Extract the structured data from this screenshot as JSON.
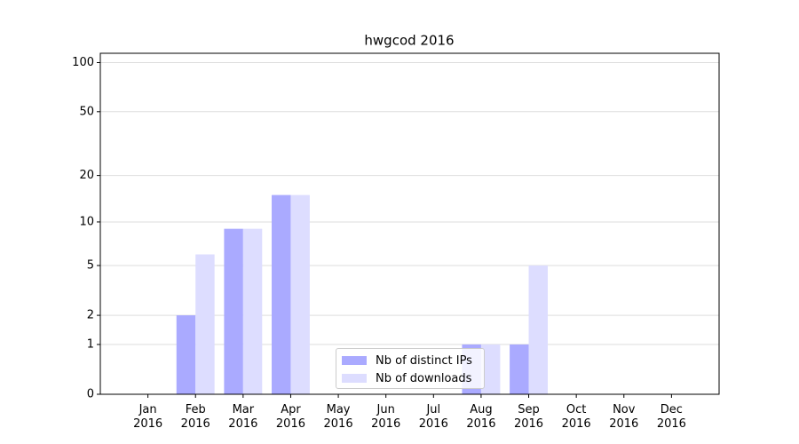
{
  "chart_data": {
    "type": "bar",
    "title": "hwgcod 2016",
    "scale": "log1p",
    "categories": [
      "Jan\n2016",
      "Feb\n2016",
      "Mar\n2016",
      "Apr\n2016",
      "May\n2016",
      "Jun\n2016",
      "Jul\n2016",
      "Aug\n2016",
      "Sep\n2016",
      "Oct\n2016",
      "Nov\n2016",
      "Dec\n2016"
    ],
    "series": [
      {
        "name": "Nb of distinct IPs",
        "color": "#aaaaff",
        "values": [
          0,
          2,
          9,
          15,
          0,
          0,
          0,
          1,
          1,
          0,
          0,
          0
        ]
      },
      {
        "name": "Nb of downloads",
        "color": "#ddddff",
        "values": [
          0,
          6,
          9,
          15,
          0,
          0,
          0,
          1,
          5,
          0,
          0,
          0
        ]
      }
    ],
    "ylim": [
      0,
      114
    ],
    "yticks": [
      0,
      1,
      2,
      5,
      10,
      20,
      50,
      100
    ],
    "grid": true,
    "legend": "lower center"
  }
}
